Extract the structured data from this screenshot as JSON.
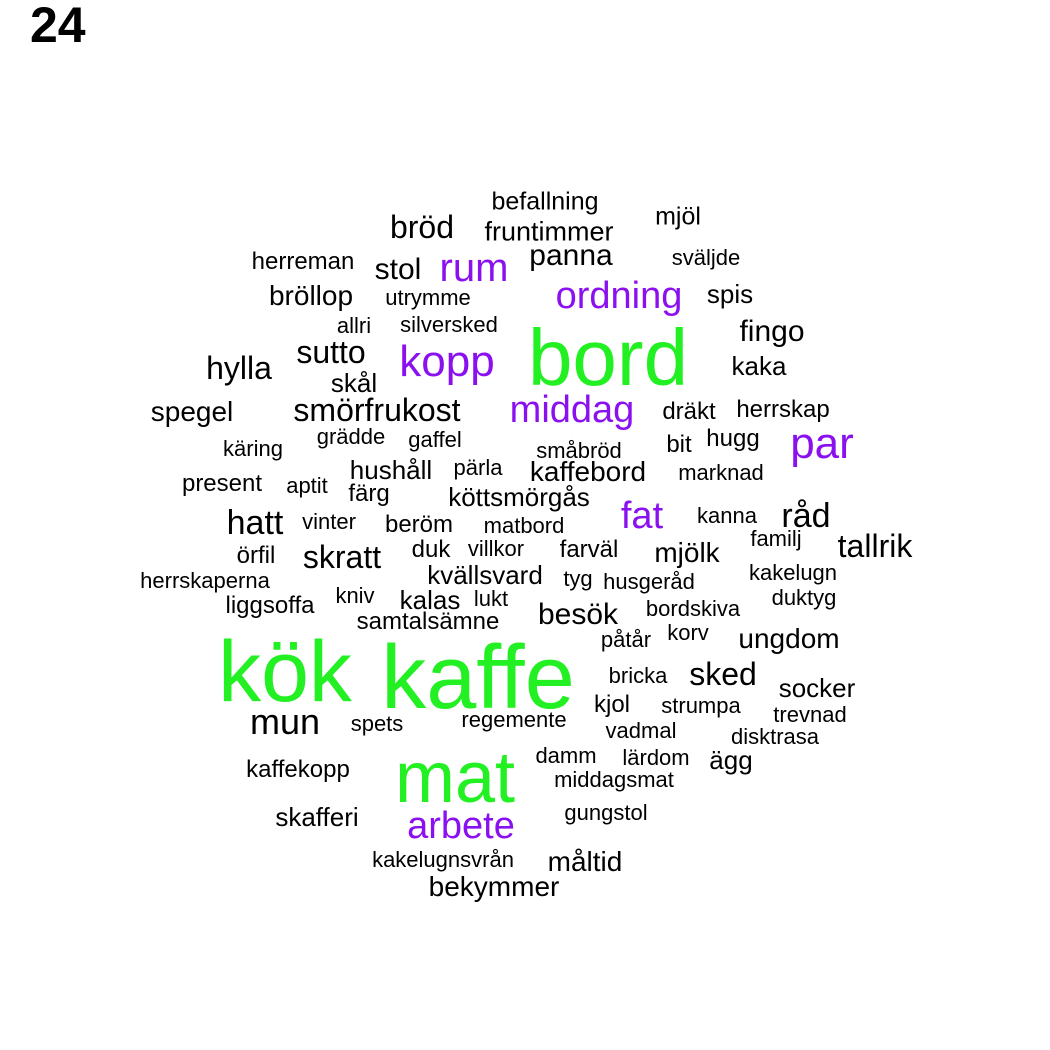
{
  "page_number": "24",
  "colors": {
    "high": "#22f022",
    "mid": "#8b10f0",
    "low": "#000000"
  },
  "words": [
    {
      "text": "kök",
      "tier": "high"
    },
    {
      "text": "kaffe",
      "tier": "high"
    },
    {
      "text": "bord",
      "tier": "high"
    },
    {
      "text": "mat",
      "tier": "high"
    },
    {
      "text": "kopp",
      "tier": "mid"
    },
    {
      "text": "rum",
      "tier": "mid"
    },
    {
      "text": "ordning",
      "tier": "mid"
    },
    {
      "text": "middag",
      "tier": "mid"
    },
    {
      "text": "par",
      "tier": "mid"
    },
    {
      "text": "fat",
      "tier": "mid"
    },
    {
      "text": "arbete",
      "tier": "mid"
    },
    {
      "text": "befallning",
      "tier": "low"
    },
    {
      "text": "mjöl",
      "tier": "low"
    },
    {
      "text": "bröd",
      "tier": "low"
    },
    {
      "text": "fruntimmer",
      "tier": "low"
    },
    {
      "text": "panna",
      "tier": "low"
    },
    {
      "text": "sväljde",
      "tier": "low"
    },
    {
      "text": "herreman",
      "tier": "low"
    },
    {
      "text": "stol",
      "tier": "low"
    },
    {
      "text": "spis",
      "tier": "low"
    },
    {
      "text": "bröllop",
      "tier": "low"
    },
    {
      "text": "utrymme",
      "tier": "low"
    },
    {
      "text": "fingo",
      "tier": "low"
    },
    {
      "text": "allri",
      "tier": "low"
    },
    {
      "text": "silversked",
      "tier": "low"
    },
    {
      "text": "sutto",
      "tier": "low"
    },
    {
      "text": "hylla",
      "tier": "low"
    },
    {
      "text": "kaka",
      "tier": "low"
    },
    {
      "text": "skål",
      "tier": "low"
    },
    {
      "text": "spegel",
      "tier": "low"
    },
    {
      "text": "smörfrukost",
      "tier": "low"
    },
    {
      "text": "dräkt",
      "tier": "low"
    },
    {
      "text": "herrskap",
      "tier": "low"
    },
    {
      "text": "grädde",
      "tier": "low"
    },
    {
      "text": "gaffel",
      "tier": "low"
    },
    {
      "text": "käring",
      "tier": "low"
    },
    {
      "text": "småbröd",
      "tier": "low"
    },
    {
      "text": "bit",
      "tier": "low"
    },
    {
      "text": "hugg",
      "tier": "low"
    },
    {
      "text": "hushåll",
      "tier": "low"
    },
    {
      "text": "pärla",
      "tier": "low"
    },
    {
      "text": "kaffebord",
      "tier": "low"
    },
    {
      "text": "marknad",
      "tier": "low"
    },
    {
      "text": "present",
      "tier": "low"
    },
    {
      "text": "aptit",
      "tier": "low"
    },
    {
      "text": "färg",
      "tier": "low"
    },
    {
      "text": "köttsmörgås",
      "tier": "low"
    },
    {
      "text": "hatt",
      "tier": "low"
    },
    {
      "text": "vinter",
      "tier": "low"
    },
    {
      "text": "beröm",
      "tier": "low"
    },
    {
      "text": "matbord",
      "tier": "low"
    },
    {
      "text": "kanna",
      "tier": "low"
    },
    {
      "text": "råd",
      "tier": "low"
    },
    {
      "text": "familj",
      "tier": "low"
    },
    {
      "text": "tallrik",
      "tier": "low"
    },
    {
      "text": "örfil",
      "tier": "low"
    },
    {
      "text": "skratt",
      "tier": "low"
    },
    {
      "text": "duk",
      "tier": "low"
    },
    {
      "text": "villkor",
      "tier": "low"
    },
    {
      "text": "farväl",
      "tier": "low"
    },
    {
      "text": "mjölk",
      "tier": "low"
    },
    {
      "text": "herrskaperna",
      "tier": "low"
    },
    {
      "text": "kvällsvard",
      "tier": "low"
    },
    {
      "text": "tyg",
      "tier": "low"
    },
    {
      "text": "husgeråd",
      "tier": "low"
    },
    {
      "text": "kakelugn",
      "tier": "low"
    },
    {
      "text": "liggsoffa",
      "tier": "low"
    },
    {
      "text": "kniv",
      "tier": "low"
    },
    {
      "text": "kalas",
      "tier": "low"
    },
    {
      "text": "lukt",
      "tier": "low"
    },
    {
      "text": "besök",
      "tier": "low"
    },
    {
      "text": "bordskiva",
      "tier": "low"
    },
    {
      "text": "duktyg",
      "tier": "low"
    },
    {
      "text": "samtalsämne",
      "tier": "low"
    },
    {
      "text": "påtår",
      "tier": "low"
    },
    {
      "text": "korv",
      "tier": "low"
    },
    {
      "text": "ungdom",
      "tier": "low"
    },
    {
      "text": "bricka",
      "tier": "low"
    },
    {
      "text": "sked",
      "tier": "low"
    },
    {
      "text": "socker",
      "tier": "low"
    },
    {
      "text": "kjol",
      "tier": "low"
    },
    {
      "text": "strumpa",
      "tier": "low"
    },
    {
      "text": "trevnad",
      "tier": "low"
    },
    {
      "text": "mun",
      "tier": "low"
    },
    {
      "text": "spets",
      "tier": "low"
    },
    {
      "text": "regemente",
      "tier": "low"
    },
    {
      "text": "vadmal",
      "tier": "low"
    },
    {
      "text": "disktrasa",
      "tier": "low"
    },
    {
      "text": "damm",
      "tier": "low"
    },
    {
      "text": "lärdom",
      "tier": "low"
    },
    {
      "text": "ägg",
      "tier": "low"
    },
    {
      "text": "kaffekopp",
      "tier": "low"
    },
    {
      "text": "middagsmat",
      "tier": "low"
    },
    {
      "text": "skafferi",
      "tier": "low"
    },
    {
      "text": "gungstol",
      "tier": "low"
    },
    {
      "text": "kakelugnsvrån",
      "tier": "low"
    },
    {
      "text": "måltid",
      "tier": "low"
    },
    {
      "text": "bekymmer",
      "tier": "low"
    }
  ]
}
